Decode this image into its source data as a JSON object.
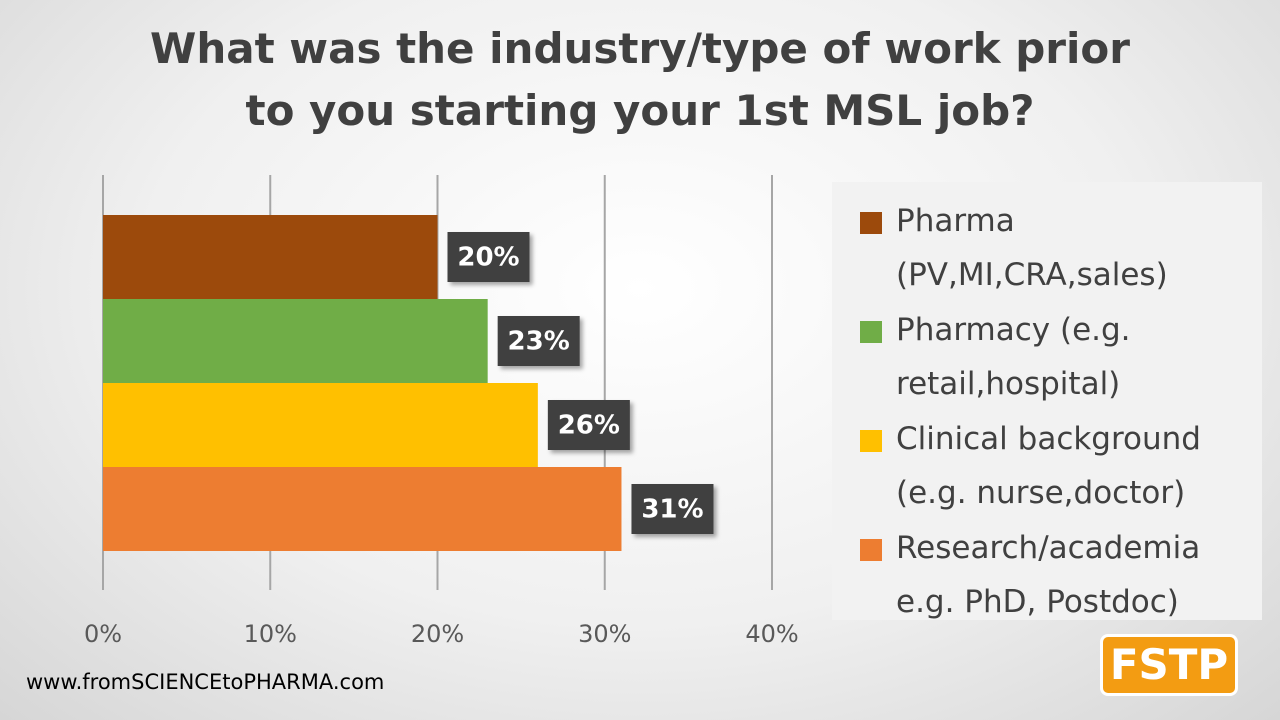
{
  "chart_data": {
    "type": "bar",
    "orientation": "horizontal",
    "title": "What was the industry/type of work prior to you starting your 1st MSL job?",
    "series": [
      {
        "name": "Pharma (PV,MI,CRA,sales)",
        "color": "#9c4a0c",
        "values": [
          20
        ],
        "value_labels": [
          "20%"
        ]
      },
      {
        "name": "Pharmacy (e.g. retail,hospital)",
        "color": "#70ad47",
        "values": [
          23
        ],
        "value_labels": [
          "23%"
        ]
      },
      {
        "name": "Clinical background (e.g. nurse,doctor)",
        "color": "#ffc000",
        "values": [
          26
        ],
        "value_labels": [
          "26%"
        ]
      },
      {
        "name": "Research/academia e.g. PhD, Postdoc)",
        "color": "#ed7d31",
        "values": [
          31
        ],
        "value_labels": [
          "31%"
        ]
      }
    ],
    "xlim": [
      0,
      40
    ],
    "xticks": [
      {
        "value": 0,
        "label": "0%"
      },
      {
        "value": 10,
        "label": "10%"
      },
      {
        "value": 20,
        "label": "20%"
      },
      {
        "value": 30,
        "label": "30%"
      },
      {
        "value": 40,
        "label": "40%"
      }
    ],
    "grid": true,
    "legend": "right"
  },
  "footer": "www.fromSCIENCEtoPHARMA.com",
  "logo": "FSTP"
}
